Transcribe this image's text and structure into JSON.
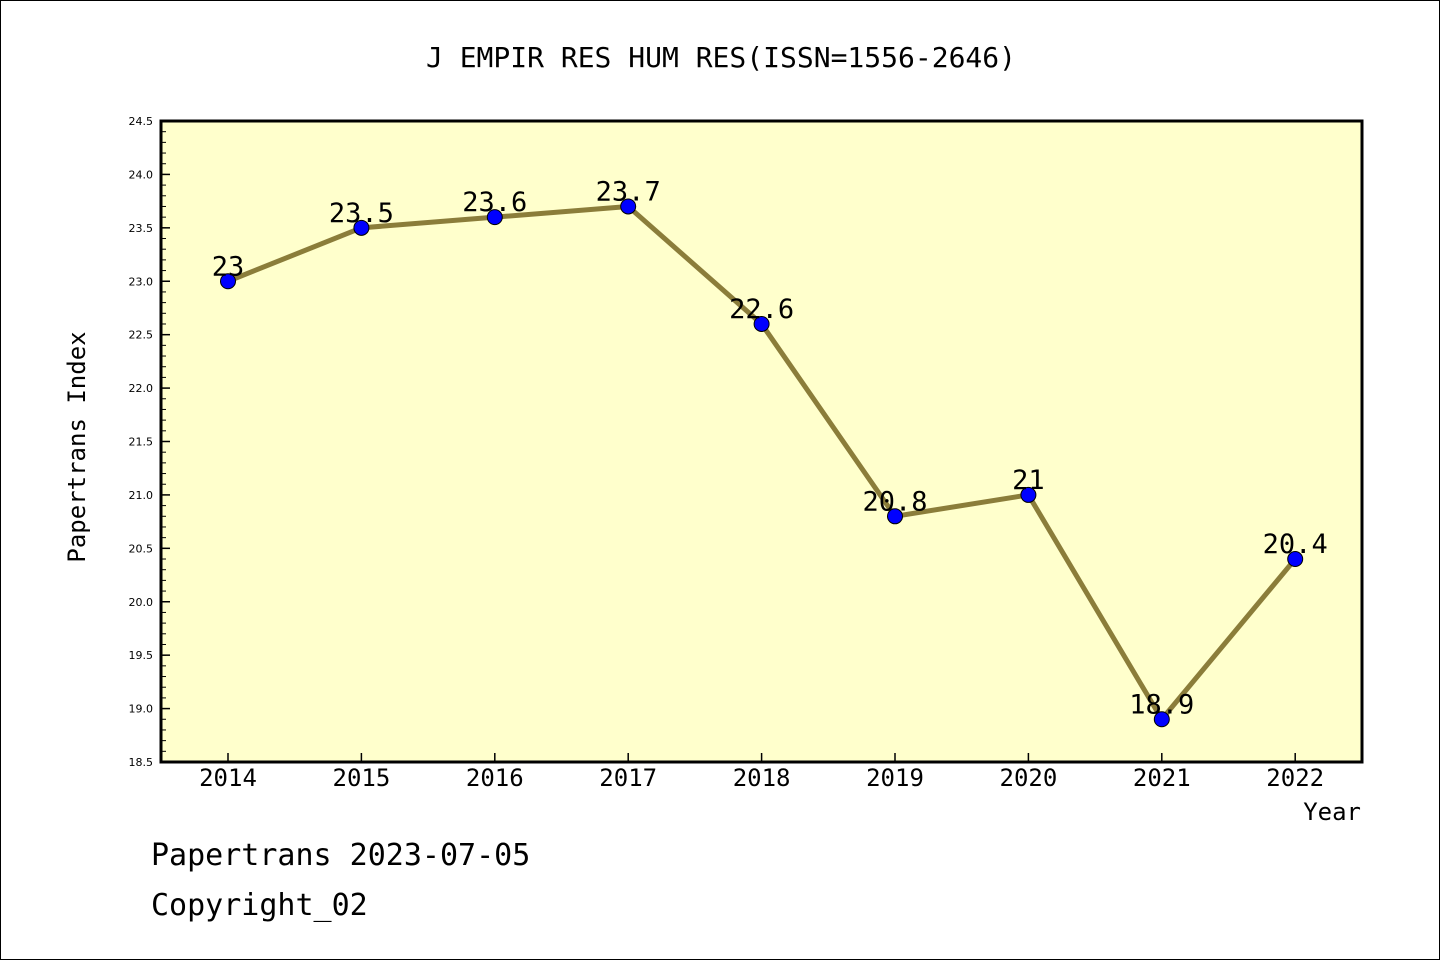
{
  "chart_data": {
    "type": "line",
    "title": "J EMPIR RES HUM RES(ISSN=1556-2646)",
    "xlabel": "Year",
    "ylabel": "Papertrans Index",
    "categories": [
      "2014",
      "2015",
      "2016",
      "2017",
      "2018",
      "2019",
      "2020",
      "2021",
      "2022"
    ],
    "series": [
      {
        "values": [
          23,
          23.5,
          23.6,
          23.7,
          22.6,
          20.8,
          21,
          18.9,
          20.4
        ],
        "data_labels": [
          "23",
          "23.5",
          "23.6",
          "23.7",
          "22.6",
          "20.8",
          "21",
          "18.9",
          "20.4"
        ]
      }
    ],
    "ylim": [
      18.5,
      24.5
    ],
    "yticks": [
      "18.5",
      "19.0",
      "19.5",
      "20.0",
      "20.5",
      "21.0",
      "21.5",
      "22.0",
      "22.5",
      "23.0",
      "23.5",
      "24.0",
      "24.5"
    ],
    "grid": false,
    "legend": "none",
    "colors": {
      "plot_background": "#ffffcc",
      "line": "#8b7d3a",
      "marker": "#0000ff",
      "axis": "#000000"
    }
  },
  "footer": {
    "line1": "Papertrans 2023-07-05",
    "line2": "Copyright_02"
  }
}
